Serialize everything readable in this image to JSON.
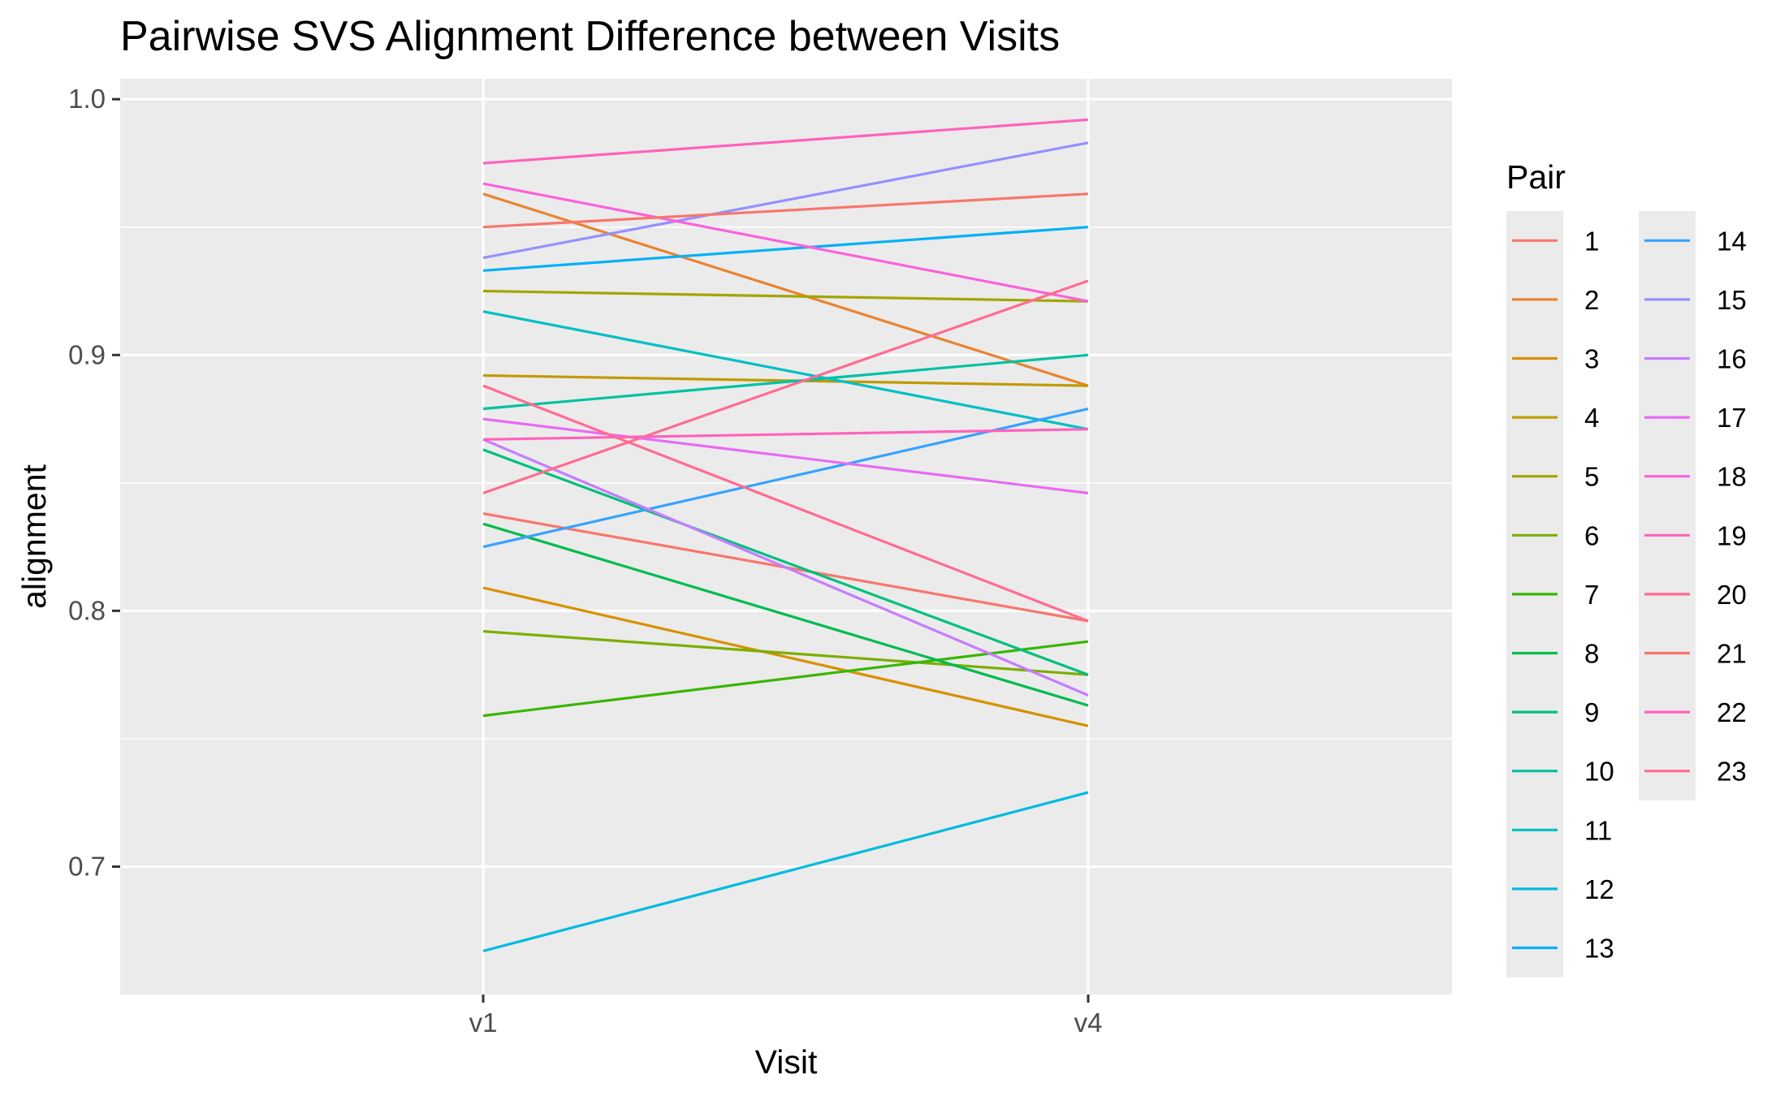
{
  "chart_data": {
    "type": "line",
    "title": "Pairwise SVS Alignment Difference between Visits",
    "xlabel": "Visit",
    "ylabel": "alignment",
    "categories": [
      "v1",
      "v4"
    ],
    "ylim": [
      0.65,
      1.008
    ],
    "yticks": [
      0.7,
      0.8,
      0.9,
      1.0
    ],
    "ytick_labels": [
      "0.7",
      "0.8",
      "0.9",
      "1.0"
    ],
    "grid": true,
    "legend": {
      "title": "Pair",
      "position": "right",
      "columns": 2
    },
    "series": [
      {
        "name": "1",
        "color": "#F8766D",
        "values": [
          0.838,
          0.796
        ]
      },
      {
        "name": "2",
        "color": "#EA8331",
        "values": [
          0.963,
          0.888
        ]
      },
      {
        "name": "3",
        "color": "#D89000",
        "values": [
          0.809,
          0.755
        ]
      },
      {
        "name": "4",
        "color": "#C09B00",
        "values": [
          0.892,
          0.888
        ]
      },
      {
        "name": "5",
        "color": "#A3A500",
        "values": [
          0.925,
          0.921
        ]
      },
      {
        "name": "6",
        "color": "#7CAE00",
        "values": [
          0.792,
          0.775
        ]
      },
      {
        "name": "7",
        "color": "#39B600",
        "values": [
          0.759,
          0.788
        ]
      },
      {
        "name": "8",
        "color": "#00BB4E",
        "values": [
          0.834,
          0.763
        ]
      },
      {
        "name": "9",
        "color": "#00BF7D",
        "values": [
          0.863,
          0.775
        ]
      },
      {
        "name": "10",
        "color": "#00C1A3",
        "values": [
          0.879,
          0.9
        ]
      },
      {
        "name": "11",
        "color": "#00BFC4",
        "values": [
          0.917,
          0.871
        ]
      },
      {
        "name": "12",
        "color": "#00BAE0",
        "values": [
          0.667,
          0.729
        ]
      },
      {
        "name": "13",
        "color": "#00B0F6",
        "values": [
          0.933,
          0.95
        ]
      },
      {
        "name": "14",
        "color": "#35A2FF",
        "values": [
          0.825,
          0.879
        ]
      },
      {
        "name": "15",
        "color": "#9590FF",
        "values": [
          0.938,
          0.983
        ]
      },
      {
        "name": "16",
        "color": "#C77CFF",
        "values": [
          0.867,
          0.767
        ]
      },
      {
        "name": "17",
        "color": "#E76BF3",
        "values": [
          0.875,
          0.846
        ]
      },
      {
        "name": "18",
        "color": "#FA62DB",
        "values": [
          0.967,
          0.921
        ]
      },
      {
        "name": "19",
        "color": "#FF62BC",
        "values": [
          0.975,
          0.992
        ]
      },
      {
        "name": "20",
        "color": "#FF6C91",
        "values": [
          0.846,
          0.929
        ]
      },
      {
        "name": "21",
        "color": "#F8766D",
        "values": [
          0.95,
          0.963
        ]
      },
      {
        "name": "22",
        "color": "#FF62BC",
        "values": [
          0.867,
          0.871
        ]
      },
      {
        "name": "23",
        "color": "#FF6C91",
        "values": [
          0.888,
          0.796
        ]
      }
    ]
  }
}
